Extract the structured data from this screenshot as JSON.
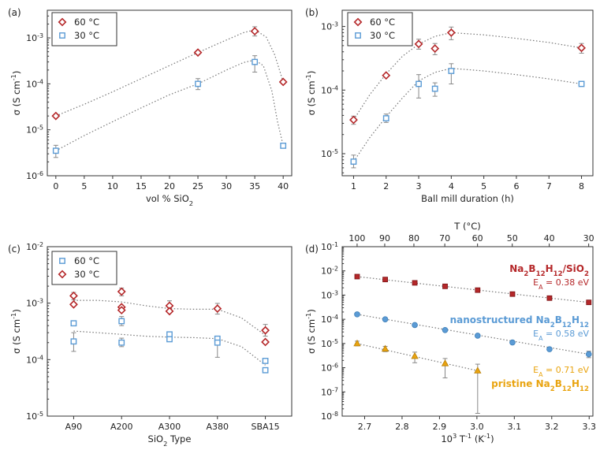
{
  "colors": {
    "red": "#b5282a",
    "blue": "#5b9bd5",
    "orange": "#e9a410",
    "fit": "#777777",
    "error": "#888888"
  },
  "chart_data": [
    {
      "id": "a",
      "panel_label": "(a)",
      "type": "scatter",
      "xlabel": "vol % SiO",
      "xlabel_sub": "2",
      "ylabel": "σ (S cm",
      "ylabel_sup": "-1",
      "ylabel_close": ")",
      "xscale": "linear",
      "yscale": "log",
      "xlim": [
        -1.5,
        41.5
      ],
      "ylim": [
        1e-06,
        0.004
      ],
      "xticks": [
        0,
        5,
        10,
        15,
        20,
        25,
        30,
        35,
        40
      ],
      "xtick_labels": [
        "0",
        "5",
        "10",
        "15",
        "20",
        "25",
        "30",
        "35",
        "40"
      ],
      "yticks": [
        1e-06,
        1e-05,
        0.0001,
        0.001
      ],
      "ytick_labels": [
        {
          "base": "10",
          "exp": "-6"
        },
        {
          "base": "10",
          "exp": "-5"
        },
        {
          "base": "10",
          "exp": "-4"
        },
        {
          "base": "10",
          "exp": "-3"
        }
      ],
      "legend": "top-left",
      "series": [
        {
          "name": "60 °C",
          "marker": "diamond",
          "color": "red",
          "x": [
            0,
            25,
            35,
            40
          ],
          "y": [
            2e-05,
            0.00048,
            0.0014,
            0.00011
          ],
          "yerr_lo": [
            null,
            null,
            0.0011,
            null
          ],
          "yerr_hi": [
            null,
            null,
            0.00175,
            null
          ]
        },
        {
          "name": "30 °C",
          "marker": "square",
          "color": "blue",
          "x": [
            0,
            25,
            35,
            40
          ],
          "y": [
            3.5e-06,
            0.0001,
            0.0003,
            4.5e-06
          ],
          "yerr_lo": [
            2.5e-06,
            7.5e-05,
            0.00018,
            null
          ],
          "yerr_hi": [
            4.6e-06,
            0.00013,
            0.00041,
            null
          ]
        }
      ],
      "fits": [
        {
          "color": "fit",
          "x": [
            0,
            5,
            10,
            15,
            20,
            25,
            30,
            33,
            35,
            37,
            38.5,
            40
          ],
          "y": [
            2e-05,
            3.6e-05,
            6.7e-05,
            0.00013,
            0.00025,
            0.00048,
            0.0009,
            0.0013,
            0.0015,
            0.00105,
            0.00043,
            0.00011
          ]
        },
        {
          "color": "fit",
          "x": [
            0,
            5,
            10,
            15,
            20,
            25,
            30,
            33,
            35,
            36.5,
            38,
            39,
            40
          ],
          "y": [
            3.5e-06,
            7.5e-06,
            1.5e-05,
            3e-05,
            5.8e-05,
            0.0001,
            0.0002,
            0.00029,
            0.00033,
            0.00025,
            7e-05,
            1.5e-05,
            4.5e-06
          ]
        }
      ]
    },
    {
      "id": "b",
      "panel_label": "(b)",
      "type": "scatter",
      "xlabel": "Ball mill duration (h)",
      "xlabel_sub": "",
      "ylabel": "σ (S cm",
      "ylabel_sup": "-1",
      "ylabel_close": ")",
      "xscale": "linear",
      "yscale": "log",
      "xlim": [
        0.65,
        8.35
      ],
      "ylim": [
        4.5e-06,
        0.0018
      ],
      "xticks": [
        1,
        2,
        3,
        4,
        5,
        6,
        7,
        8
      ],
      "xtick_labels": [
        "1",
        "2",
        "3",
        "4",
        "5",
        "6",
        "7",
        "8"
      ],
      "yticks": [
        1e-05,
        0.0001,
        0.001
      ],
      "ytick_labels": [
        {
          "base": "10",
          "exp": "-5"
        },
        {
          "base": "10",
          "exp": "-4"
        },
        {
          "base": "10",
          "exp": "-3"
        }
      ],
      "legend": "top-left",
      "series": [
        {
          "name": "60 °C",
          "marker": "diamond",
          "color": "red",
          "x": [
            1,
            2,
            3,
            3.5,
            4,
            8
          ],
          "y": [
            3.4e-05,
            0.00017,
            0.00053,
            0.00045,
            0.0008,
            0.00046
          ],
          "yerr_lo": [
            2.9e-05,
            null,
            0.00044,
            0.00036,
            0.00062,
            0.00038
          ],
          "yerr_hi": [
            3.9e-05,
            null,
            0.00063,
            0.00054,
            0.00098,
            0.00054
          ]
        },
        {
          "name": "30 °C",
          "marker": "square",
          "color": "blue",
          "x": [
            1,
            2,
            3,
            3.5,
            4,
            8
          ],
          "y": [
            7.5e-06,
            3.6e-05,
            0.000125,
            0.000105,
            0.0002,
            0.000125
          ],
          "yerr_lo": [
            6e-06,
            3.1e-05,
            7.5e-05,
            8e-05,
            0.000125,
            null
          ],
          "yerr_hi": [
            9.5e-06,
            4.2e-05,
            0.000175,
            0.00013,
            0.00026,
            null
          ]
        }
      ],
      "fits": [
        {
          "color": "fit",
          "x": [
            1,
            1.5,
            2,
            2.5,
            3,
            3.5,
            4,
            5,
            6,
            7,
            8
          ],
          "y": [
            3.4e-05,
            8.5e-05,
            0.00018,
            0.00034,
            0.00053,
            0.0007,
            0.0008,
            0.00074,
            0.00065,
            0.00056,
            0.00046
          ]
        },
        {
          "color": "fit",
          "x": [
            1,
            1.5,
            2,
            2.5,
            3,
            3.5,
            4,
            5,
            6,
            7,
            8
          ],
          "y": [
            7.5e-06,
            1.8e-05,
            3.8e-05,
            7.5e-05,
            0.00014,
            0.00019,
            0.00022,
            0.0002,
            0.000175,
            0.00015,
            0.000125
          ]
        }
      ]
    },
    {
      "id": "c",
      "panel_label": "(c)",
      "type": "scatter",
      "xlabel": "SiO",
      "xlabel_sub": "2",
      "xlabel_after": " Type",
      "ylabel": "σ (S cm",
      "ylabel_sup": "-1",
      "ylabel_close": ")",
      "xscale": "linear",
      "yscale": "log",
      "xlim": [
        -0.55,
        4.55
      ],
      "ylim": [
        1e-05,
        0.01
      ],
      "xticks": [
        0,
        1,
        2,
        3,
        4
      ],
      "xtick_labels": [
        "A90",
        "A200",
        "A300",
        "A380",
        "SBA15"
      ],
      "yticks": [
        1e-05,
        0.0001,
        0.001,
        0.01
      ],
      "ytick_labels": [
        {
          "base": "10",
          "exp": "-5"
        },
        {
          "base": "10",
          "exp": "-4"
        },
        {
          "base": "10",
          "exp": "-3"
        },
        {
          "base": "10",
          "exp": "-2"
        }
      ],
      "legend": "top-left",
      "series": [
        {
          "name": "60 °C",
          "marker": "square",
          "color": "blue",
          "x": [
            0,
            0,
            1,
            1,
            2,
            2,
            3,
            3,
            4,
            4
          ],
          "y": [
            0.00044,
            0.00021,
            0.00048,
            0.0002,
            0.00028,
            0.00023,
            0.000235,
            0.0002,
            9.5e-05,
            6.5e-05
          ],
          "yerr_lo": [
            null,
            0.00014,
            0.0004,
            0.00017,
            null,
            null,
            null,
            0.00011,
            null,
            null
          ],
          "yerr_hi": [
            null,
            0.0003,
            0.00058,
            0.00024,
            null,
            null,
            null,
            0.00026,
            null,
            null
          ]
        },
        {
          "name": "30 °C",
          "marker": "diamond",
          "color": "red",
          "x": [
            0,
            0,
            1,
            1,
            1,
            2,
            2,
            3,
            4,
            4
          ],
          "y": [
            0.00135,
            0.00095,
            0.0016,
            0.00085,
            0.00075,
            0.0009,
            0.00072,
            0.0008,
            0.00033,
            0.000205
          ],
          "yerr_lo": [
            0.00115,
            null,
            0.00135,
            null,
            null,
            0.00074,
            null,
            0.00064,
            0.00026,
            null
          ],
          "yerr_hi": [
            0.00155,
            null,
            0.00185,
            null,
            null,
            0.0011,
            null,
            0.00099,
            0.00042,
            null
          ]
        }
      ],
      "fits": [
        {
          "color": "fit",
          "x": [
            0,
            0.5,
            1,
            1.5,
            2,
            2.5,
            3,
            3.5,
            4
          ],
          "y": [
            0.00112,
            0.00112,
            0.00105,
            0.0009,
            0.0008,
            0.00078,
            0.00078,
            0.00055,
            0.00027
          ]
        },
        {
          "color": "fit",
          "x": [
            0,
            0.5,
            1,
            1.5,
            2,
            2.5,
            3,
            3.5,
            4
          ],
          "y": [
            0.00032,
            0.0003,
            0.00028,
            0.00026,
            0.00025,
            0.000245,
            0.000235,
            0.00017,
            8e-05
          ]
        }
      ]
    },
    {
      "id": "d",
      "panel_label": "(d)",
      "type": "scatter",
      "xlabel": "10",
      "xlabel_sup": "3",
      "xlabel_after": " T",
      "xlabel_sup2": "-1",
      "xlabel_tail": " (K",
      "xlabel_sup3": "-1",
      "xlabel_close": ")",
      "top_xlabel": "T (°C)",
      "top_xticks_celsius": [
        100,
        90,
        80,
        70,
        60,
        50,
        40,
        30
      ],
      "ylabel": "σ (S cm",
      "ylabel_sup": "-1",
      "ylabel_close": ")",
      "xscale": "linear",
      "yscale": "log",
      "xlim": [
        2.64,
        3.31
      ],
      "ylim": [
        1e-08,
        0.1
      ],
      "xticks": [
        2.7,
        2.8,
        2.9,
        3.0,
        3.1,
        3.2,
        3.3
      ],
      "xtick_labels": [
        "2.7",
        "2.8",
        "2.9",
        "3.0",
        "3.1",
        "3.2",
        "3.3"
      ],
      "yticks": [
        1e-08,
        1e-07,
        1e-06,
        1e-05,
        0.0001,
        0.001,
        0.01,
        0.1
      ],
      "ytick_labels": [
        {
          "base": "10",
          "exp": "-8"
        },
        {
          "base": "10",
          "exp": "-7"
        },
        {
          "base": "10",
          "exp": "-6"
        },
        {
          "base": "10",
          "exp": "-5"
        },
        {
          "base": "10",
          "exp": "-4"
        },
        {
          "base": "10",
          "exp": "-3"
        },
        {
          "base": "10",
          "exp": "-2"
        },
        {
          "base": "10",
          "exp": "-1"
        }
      ],
      "series": [
        {
          "name": "Na2B12H12/SiO2",
          "marker": "square-filled",
          "color": "red",
          "x": [
            2.68,
            2.755,
            2.834,
            2.915,
            3.002,
            3.095,
            3.194,
            3.299
          ],
          "y": [
            0.0058,
            0.0044,
            0.0032,
            0.0023,
            0.0016,
            0.0011,
            0.00075,
            0.0005
          ],
          "yerr_lo": [
            null,
            null,
            null,
            null,
            null,
            null,
            null,
            null
          ],
          "yerr_hi": [
            null,
            null,
            null,
            null,
            null,
            null,
            null,
            null
          ]
        },
        {
          "name": "nanostructured Na2B12H12",
          "marker": "circle",
          "color": "blue",
          "x": [
            2.68,
            2.755,
            2.834,
            2.915,
            3.002,
            3.095,
            3.194,
            3.299
          ],
          "y": [
            0.00016,
            0.0001,
            5.8e-05,
            3.6e-05,
            2.1e-05,
            1.1e-05,
            5.8e-06,
            3.6e-06
          ],
          "yerr_lo": [
            null,
            null,
            null,
            null,
            null,
            null,
            null,
            2.6e-06
          ],
          "yerr_hi": [
            null,
            null,
            null,
            null,
            null,
            null,
            null,
            4.8e-06
          ]
        },
        {
          "name": "pristine Na2B12H12",
          "marker": "triangle",
          "color": "orange",
          "x": [
            2.68,
            2.755,
            2.834,
            2.915,
            3.002
          ],
          "y": [
            1e-05,
            6e-06,
            3e-06,
            1.5e-06,
            7.5e-07
          ],
          "yerr_lo": [
            8e-06,
            4.6e-06,
            1.6e-06,
            3.8e-07,
            1.3e-08
          ],
          "yerr_hi": [
            1.25e-05,
            7.6e-06,
            4.4e-06,
            2.4e-06,
            1.4e-06
          ]
        }
      ],
      "fits": [
        {
          "color": "fit",
          "x": [
            2.68,
            3.299
          ],
          "y": [
            0.0058,
            0.0005
          ]
        },
        {
          "color": "fit",
          "x": [
            2.68,
            3.299
          ],
          "y": [
            0.00016,
            3.6e-06
          ]
        },
        {
          "color": "fit",
          "x": [
            2.68,
            3.002
          ],
          "y": [
            1e-05,
            7.5e-07
          ]
        }
      ],
      "annotations": [
        {
          "id": "sio2-name",
          "parts": [
            {
              "t": "Na"
            },
            {
              "t": "2",
              "sub": true
            },
            {
              "t": "B"
            },
            {
              "t": "12",
              "sub": true
            },
            {
              "t": "H"
            },
            {
              "t": "12",
              "sub": true
            },
            {
              "t": "/SiO"
            },
            {
              "t": "2",
              "sub": true
            }
          ],
          "color": "red",
          "bold": true
        },
        {
          "id": "sio2-ea",
          "parts": [
            {
              "t": "E"
            },
            {
              "t": "A",
              "sub": true
            },
            {
              "t": " = 0.38 eV"
            }
          ],
          "color": "red",
          "bold": false
        },
        {
          "id": "nano-name",
          "parts": [
            {
              "t": "nanostructured Na"
            },
            {
              "t": "2",
              "sub": true
            },
            {
              "t": "B"
            },
            {
              "t": "12",
              "sub": true
            },
            {
              "t": "H"
            },
            {
              "t": "12",
              "sub": true
            }
          ],
          "color": "blue",
          "bold": true
        },
        {
          "id": "nano-ea",
          "parts": [
            {
              "t": "E"
            },
            {
              "t": "A",
              "sub": true
            },
            {
              "t": " = 0.58 eV"
            }
          ],
          "color": "blue",
          "bold": false
        },
        {
          "id": "pristine-ea",
          "parts": [
            {
              "t": "E"
            },
            {
              "t": "A",
              "sub": true
            },
            {
              "t": " = 0.71 eV"
            }
          ],
          "color": "orange",
          "bold": false
        },
        {
          "id": "pristine-name",
          "parts": [
            {
              "t": "pristine Na"
            },
            {
              "t": "2",
              "sub": true
            },
            {
              "t": "B"
            },
            {
              "t": "12",
              "sub": true
            },
            {
              "t": "H"
            },
            {
              "t": "12",
              "sub": true
            }
          ],
          "color": "orange",
          "bold": true
        }
      ]
    }
  ]
}
